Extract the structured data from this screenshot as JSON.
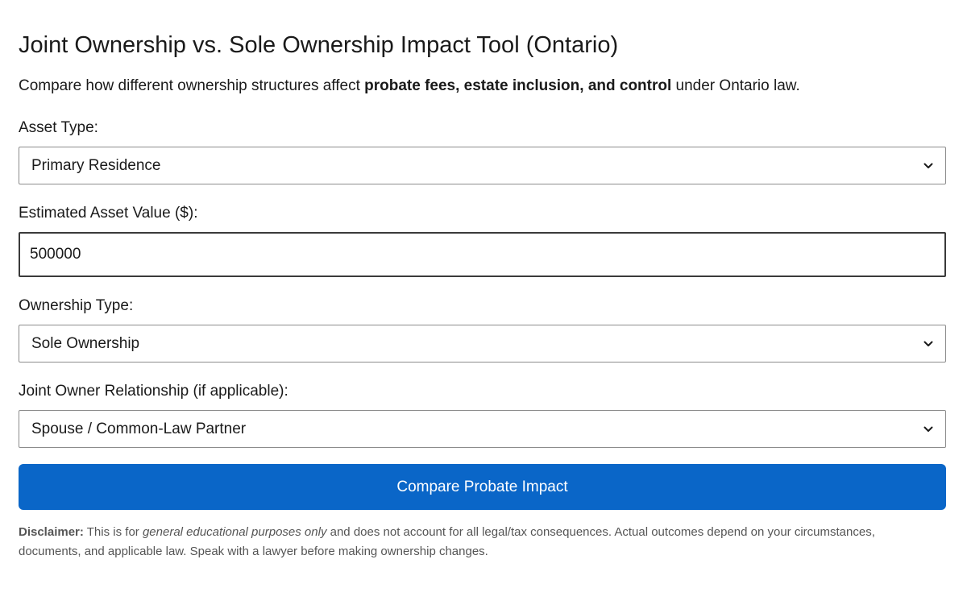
{
  "page": {
    "title": "Joint Ownership vs. Sole Ownership Impact Tool (Ontario)",
    "intro": {
      "prefix": "Compare how different ownership structures affect ",
      "bold": "probate fees, estate inclusion, and control",
      "suffix": " under Ontario law."
    }
  },
  "form": {
    "asset_type": {
      "label": "Asset Type:",
      "selected": "Primary Residence"
    },
    "asset_value": {
      "label": "Estimated Asset Value ($):",
      "value": "500000"
    },
    "ownership_type": {
      "label": "Ownership Type:",
      "selected": "Sole Ownership"
    },
    "joint_relationship": {
      "label": "Joint Owner Relationship (if applicable):",
      "selected": "Spouse / Common-Law Partner"
    },
    "submit_label": "Compare Probate Impact"
  },
  "disclaimer": {
    "heading": "Disclaimer:",
    "text_before": " This is for ",
    "emphasis": "general educational purposes only",
    "text_after": " and does not account for all legal/tax consequences. Actual outcomes depend on your circumstances, documents, and applicable law. Speak with a lawyer before making ownership changes."
  },
  "colors": {
    "accent": "#0a66c8",
    "text": "#1a1a1a",
    "muted": "#555555",
    "border": "#8c8c8c"
  },
  "icons": {
    "dropdown": "chevron-down-icon"
  }
}
